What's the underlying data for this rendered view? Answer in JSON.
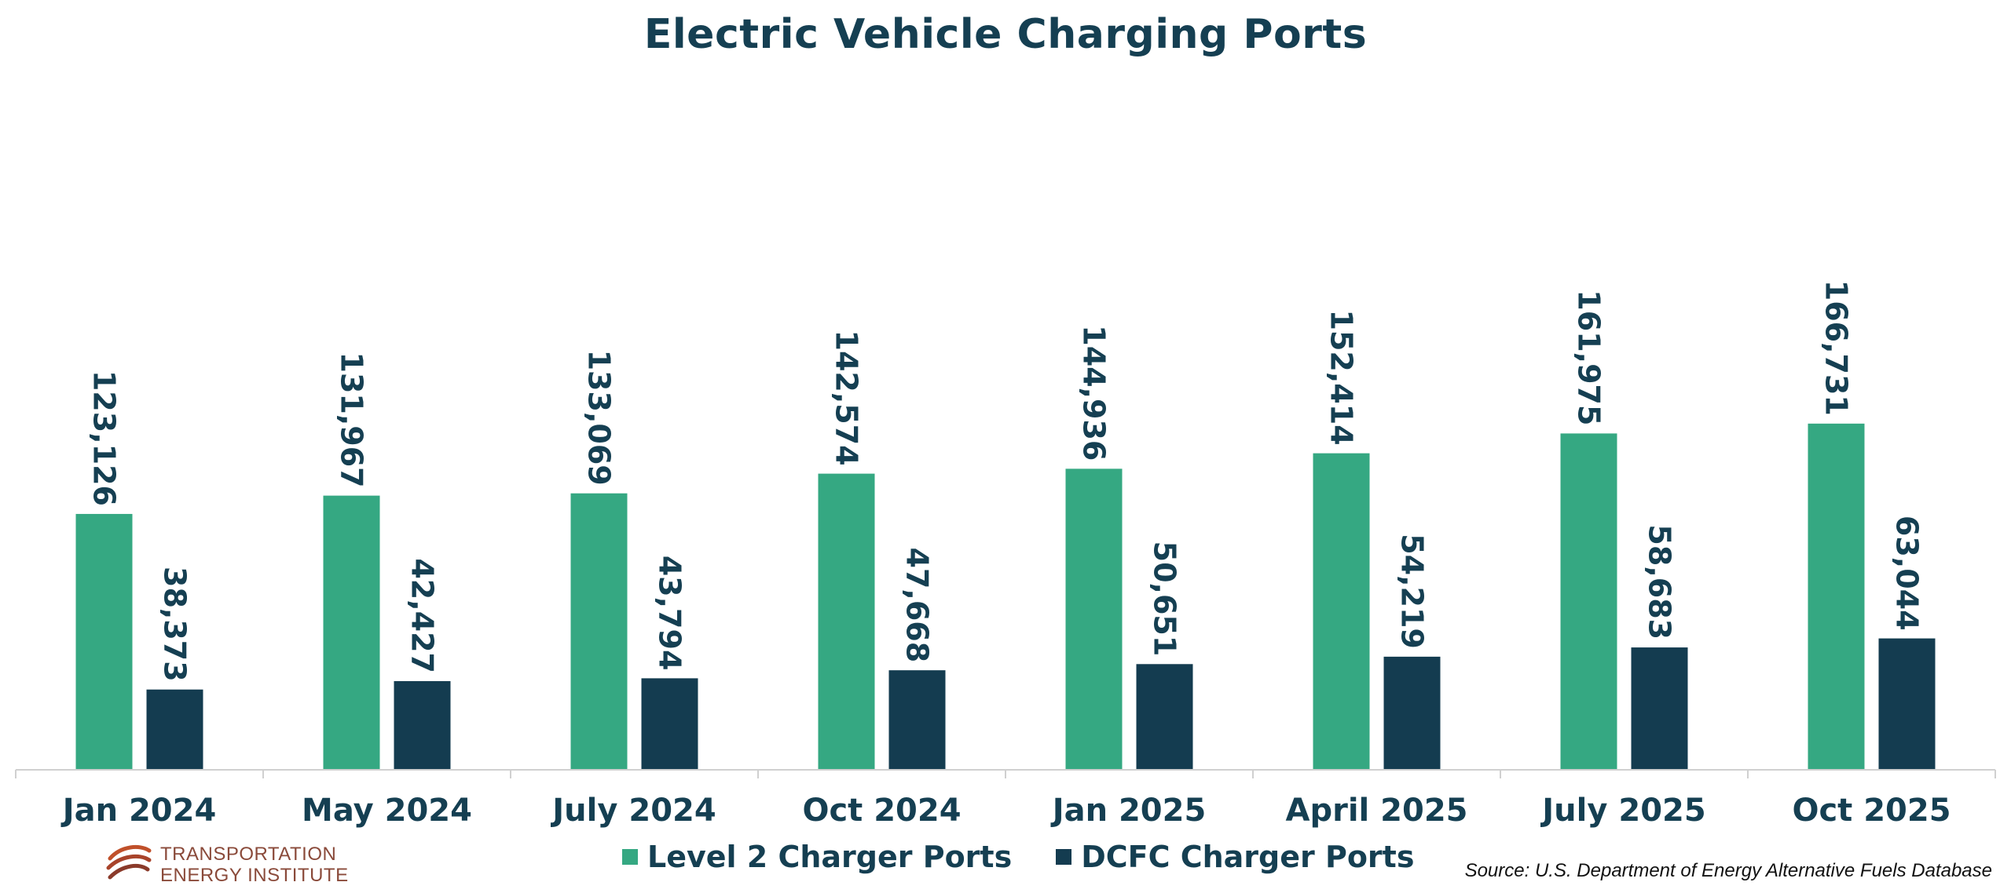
{
  "chart_data": {
    "type": "bar",
    "title": "Electric Vehicle Charging Ports",
    "categories": [
      "Jan 2024",
      "May 2024",
      "July 2024",
      "Oct 2024",
      "Jan 2025",
      "April 2025",
      "July 2025",
      "Oct 2025"
    ],
    "series": [
      {
        "name": "Level 2 Charger Ports",
        "color": "#35a882",
        "values": [
          123126,
          131967,
          133069,
          142574,
          144936,
          152414,
          161975,
          166731
        ],
        "labels": [
          "123,126",
          "131,967",
          "133,069",
          "142,574",
          "144,936",
          "152,414",
          "161,975",
          "166,731"
        ]
      },
      {
        "name": "DCFC Charger Ports",
        "color": "#143c50",
        "values": [
          38373,
          42427,
          43794,
          47668,
          50651,
          54219,
          58683,
          63044
        ],
        "labels": [
          "38,373",
          "42,427",
          "43,794",
          "47,668",
          "50,651",
          "54,219",
          "58,683",
          "63,044"
        ]
      }
    ],
    "xlabel": "",
    "ylabel": "",
    "ylim": [
      0,
      200000
    ],
    "grid": false,
    "legend": "bottom-center"
  },
  "source": "Source: U.S. Department of Energy Alternative Fuels Database",
  "logo": {
    "line1": "TRANSPORTATION",
    "line2": "ENERGY INSTITUTE",
    "icon": "swoosh-logo-icon"
  }
}
